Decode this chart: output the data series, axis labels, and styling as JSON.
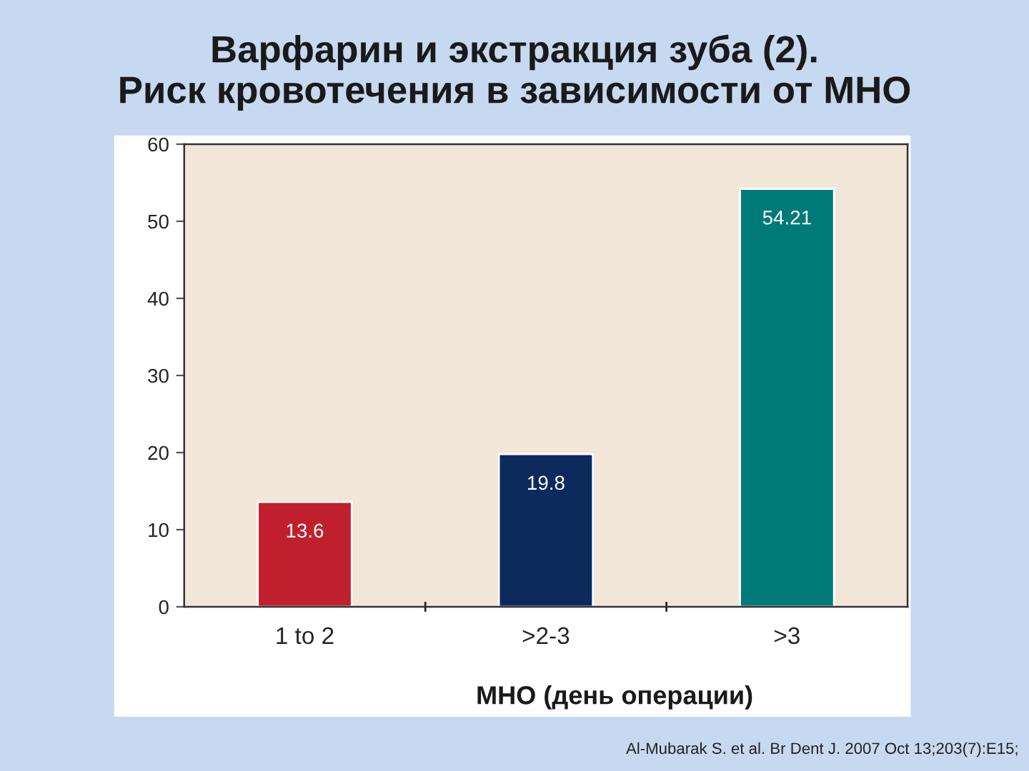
{
  "chart_data": {
    "type": "bar",
    "title": "Варфарин и экстракция зуба (2).\nРиск кровотечения в зависимости от МНО",
    "xlabel": "МНО (день операции)",
    "categories": [
      "1 to 2",
      ">2-3",
      ">3"
    ],
    "values": [
      13.6,
      19.8,
      54.21
    ],
    "colors": [
      "#c0202e",
      "#0d2a5c",
      "#007a78"
    ],
    "ylim": [
      0,
      60
    ],
    "yticks": [
      0,
      10,
      20,
      30,
      40,
      50,
      60
    ],
    "data_labels": true,
    "grid": false,
    "annotations": [
      "Al-Mubarak S. et al. Br Dent J. 2007 Oct 13;203(7):E15;"
    ]
  }
}
